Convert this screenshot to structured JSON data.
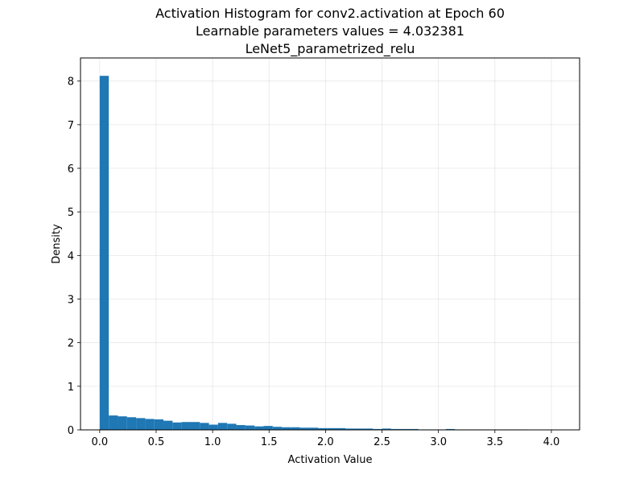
{
  "chart_data": {
    "type": "bar",
    "title_lines": [
      "Activation Histogram for conv2.activation at Epoch 60",
      "Learnable parameters values = 4.032381",
      "LeNet5_parametrized_relu"
    ],
    "xlabel": "Activation Value",
    "ylabel": "Density",
    "xlim": [
      -0.17,
      4.25
    ],
    "ylim": [
      0,
      8.53
    ],
    "xticks": [
      0.0,
      0.5,
      1.0,
      1.5,
      2.0,
      2.5,
      3.0,
      3.5,
      4.0
    ],
    "xtick_labels": [
      "0.0",
      "0.5",
      "1.0",
      "1.5",
      "2.0",
      "2.5",
      "3.0",
      "3.5",
      "4.0"
    ],
    "yticks": [
      0,
      1,
      2,
      3,
      4,
      5,
      6,
      7,
      8
    ],
    "ytick_labels": [
      "0",
      "1",
      "2",
      "3",
      "4",
      "5",
      "6",
      "7",
      "8"
    ],
    "grid": true,
    "bar_color": "#1f77b4",
    "bin_edges": [
      0.0,
      0.0806,
      0.1613,
      0.2419,
      0.3226,
      0.4032,
      0.4839,
      0.5645,
      0.6452,
      0.7258,
      0.8065,
      0.8871,
      0.9677,
      1.0484,
      1.129,
      1.2097,
      1.2903,
      1.371,
      1.4516,
      1.5323,
      1.6129,
      1.6935,
      1.7742,
      1.8548,
      1.9355,
      2.0161,
      2.0968,
      2.1774,
      2.2581,
      2.3387,
      2.4194,
      2.5,
      2.5806,
      2.6613,
      2.7419,
      2.8226,
      2.9032,
      2.9839,
      3.0645,
      3.1452,
      3.2258,
      3.3065,
      3.3871,
      3.4677,
      3.5484,
      3.629,
      3.7097,
      3.7903,
      3.871,
      3.9516,
      4.0323
    ],
    "values": [
      8.12,
      0.33,
      0.31,
      0.29,
      0.27,
      0.25,
      0.24,
      0.21,
      0.17,
      0.18,
      0.18,
      0.16,
      0.12,
      0.16,
      0.14,
      0.11,
      0.1,
      0.08,
      0.09,
      0.07,
      0.06,
      0.06,
      0.05,
      0.05,
      0.04,
      0.04,
      0.04,
      0.03,
      0.03,
      0.03,
      0.02,
      0.03,
      0.02,
      0.02,
      0.02,
      0.01,
      0.01,
      0.01,
      0.02,
      0.01,
      0.01,
      0.01,
      0.01,
      0.01,
      0.01,
      0.01,
      0.01,
      0.005,
      0.005,
      0.005
    ]
  }
}
